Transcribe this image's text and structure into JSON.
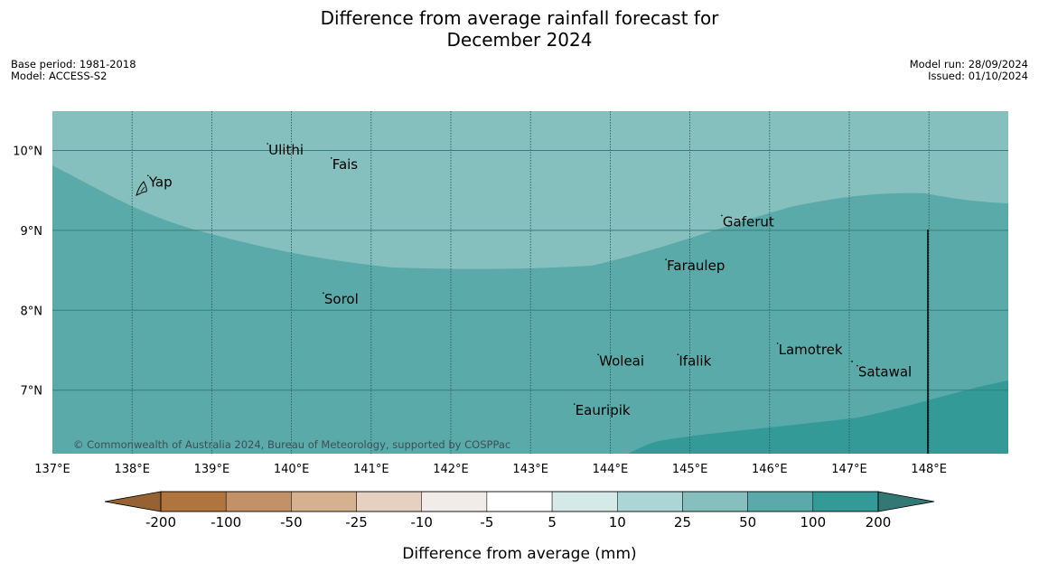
{
  "header": {
    "title_line1": "Difference from average rainfall forecast for",
    "title_line2": "December 2024",
    "base_period": "Base period: 1981-2018",
    "model": "Model: ACCESS-S2",
    "model_run": "Model run: 28/09/2024",
    "issued": "Issued: 01/10/2024"
  },
  "map": {
    "lon_labels": [
      "137°E",
      "138°E",
      "139°E",
      "140°E",
      "141°E",
      "142°E",
      "143°E",
      "144°E",
      "145°E",
      "146°E",
      "147°E",
      "148°E"
    ],
    "lat_labels": [
      "10°N",
      "9°N",
      "8°N",
      "7°N"
    ],
    "places": [
      {
        "name": "Yap",
        "lon": 138.2,
        "lat": 9.55
      },
      {
        "name": "Ulithi",
        "lon": 139.7,
        "lat": 9.95
      },
      {
        "name": "Fais",
        "lon": 140.5,
        "lat": 9.77
      },
      {
        "name": "Gaferut",
        "lon": 145.4,
        "lat": 9.05
      },
      {
        "name": "Faraulep",
        "lon": 144.7,
        "lat": 8.5
      },
      {
        "name": "Sorol",
        "lon": 140.4,
        "lat": 8.08
      },
      {
        "name": "Lamotrek",
        "lon": 146.1,
        "lat": 7.45
      },
      {
        "name": "Woleai",
        "lon": 143.85,
        "lat": 7.31
      },
      {
        "name": "Ifalik",
        "lon": 144.85,
        "lat": 7.31
      },
      {
        "name": "Satawal",
        "lon": 147.1,
        "lat": 7.17
      },
      {
        "name": "Eauripik",
        "lon": 143.55,
        "lat": 6.69
      }
    ],
    "copyright": "© Commonwealth of Australia 2024, Bureau of Meteorology, supported by COSPPac",
    "region_colors": {
      "upper": "#85c0be",
      "middle": "#5aaaaa",
      "lower": "#339a97"
    }
  },
  "colorbar": {
    "label": "Difference from average (mm)",
    "ticks": [
      "-200",
      "-100",
      "-50",
      "-25",
      "-10",
      "-5",
      "5",
      "10",
      "25",
      "50",
      "100",
      "200"
    ],
    "colors": [
      "#976231",
      "#b0743d",
      "#c29167",
      "#d6b18f",
      "#e5d1c1",
      "#f1ece7",
      "#ffffff",
      "#d5e9e8",
      "#acd6d5",
      "#85c0be",
      "#5aaaaa",
      "#339a97",
      "#337874"
    ]
  }
}
